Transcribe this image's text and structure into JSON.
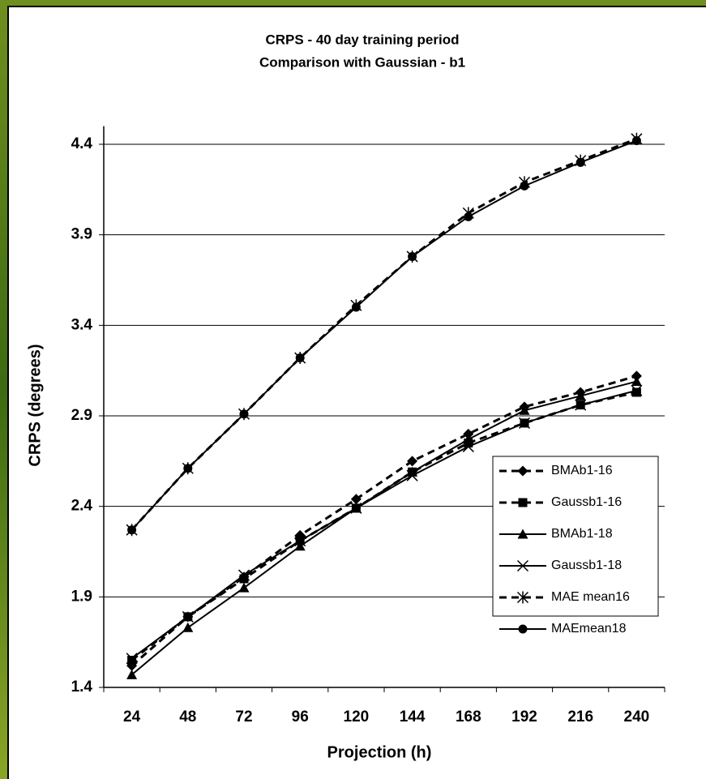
{
  "chart_data": {
    "type": "line",
    "title": "CRPS - 40 day training period",
    "subtitle": "Comparison with Gaussian - b1",
    "x_label": "Projection (h)",
    "y_label": "CRPS (degrees)",
    "categories": [
      24,
      48,
      72,
      96,
      120,
      144,
      168,
      192,
      216,
      240
    ],
    "ylim": [
      1.4,
      4.5
    ],
    "yticks": [
      1.4,
      1.9,
      2.4,
      2.9,
      3.4,
      3.9,
      4.4
    ],
    "grid": true,
    "legend": "lower-right",
    "series": [
      {
        "name": "BMAb1-16",
        "color": "#000000",
        "marker": "diamond",
        "dashed": true,
        "values": [
          1.52,
          1.79,
          2.01,
          2.24,
          2.44,
          2.65,
          2.8,
          2.95,
          3.03,
          3.12
        ]
      },
      {
        "name": "Gaussb1-16",
        "color": "#000000",
        "marker": "square",
        "dashed": true,
        "values": [
          1.55,
          1.79,
          2.0,
          2.21,
          2.39,
          2.59,
          2.75,
          2.86,
          2.96,
          3.03
        ]
      },
      {
        "name": "BMAb1-18",
        "color": "#000000",
        "marker": "triangle",
        "dashed": false,
        "values": [
          1.47,
          1.73,
          1.95,
          2.18,
          2.39,
          2.59,
          2.77,
          2.93,
          3.01,
          3.09
        ]
      },
      {
        "name": "Gaussb1-18",
        "color": "#000000",
        "marker": "x",
        "dashed": false,
        "values": [
          1.56,
          1.79,
          2.02,
          2.21,
          2.39,
          2.57,
          2.73,
          2.86,
          2.96,
          3.04
        ]
      },
      {
        "name": "MAE mean16",
        "color": "#000000",
        "marker": "star",
        "dashed": true,
        "values": [
          2.27,
          2.61,
          2.91,
          3.22,
          3.51,
          3.78,
          4.02,
          4.19,
          4.31,
          4.43
        ]
      },
      {
        "name": "MAEmean18",
        "color": "#000000",
        "marker": "circle",
        "dashed": false,
        "values": [
          2.27,
          2.61,
          2.91,
          3.22,
          3.5,
          3.78,
          4.0,
          4.17,
          4.3,
          4.42
        ]
      }
    ]
  }
}
